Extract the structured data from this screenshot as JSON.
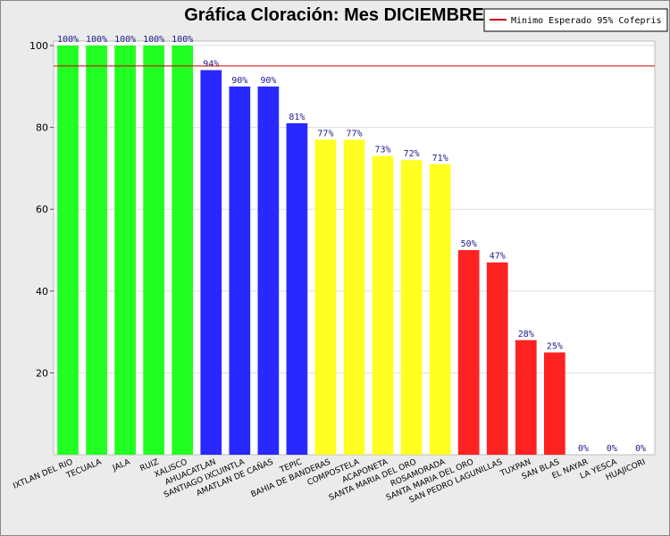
{
  "chart_data": {
    "type": "bar",
    "title": "Gráfica Cloración: Mes DICIEMBRE",
    "xlabel": "",
    "ylabel": "",
    "ylim": [
      0,
      100
    ],
    "yticks": [
      20,
      40,
      60,
      80,
      100
    ],
    "grid": true,
    "legend_position": "top-right",
    "categories": [
      "IXTLAN DEL RIO",
      "TECUALA",
      "JALA",
      "RUIZ",
      "XALISCO",
      "AHUACATLAN",
      "SANTIAGO IXCUINTLA",
      "AMATLAN DE CAÑAS",
      "TEPIC",
      "BAHIA DE BANDERAS",
      "COMPOSTELA",
      "ACAPONETA",
      "SANTA MARIA DEL ORO",
      "ROSAMORADA",
      "SANTA MARIA DEL ORO",
      "SAN PEDRO LAGUNILLAS",
      "TUXPAN",
      "SAN BLAS",
      "EL NAYAR",
      "LA YESCA",
      "HUAJICORI"
    ],
    "values": [
      100,
      100,
      100,
      100,
      100,
      94,
      90,
      90,
      81,
      77,
      77,
      73,
      72,
      71,
      50,
      47,
      28,
      25,
      0,
      0,
      0
    ],
    "data_labels": [
      "100%",
      "100%",
      "100%",
      "100%",
      "100%",
      "94%",
      "90%",
      "90%",
      "81%",
      "77%",
      "77%",
      "73%",
      "72%",
      "71%",
      "50%",
      "47%",
      "28%",
      "25%",
      "0%",
      "0%",
      "0%"
    ],
    "bar_colors": [
      "#22ff22",
      "#22ff22",
      "#22ff22",
      "#22ff22",
      "#22ff22",
      "#2929ff",
      "#2929ff",
      "#2929ff",
      "#2929ff",
      "#ffff22",
      "#ffff22",
      "#ffff22",
      "#ffff22",
      "#ffff22",
      "#ff2222",
      "#ff2222",
      "#ff2222",
      "#ff2222",
      "#ff2222",
      "#ff2222",
      "#ff2222"
    ],
    "reference_line": {
      "name": "Minimo Esperado 95% Cofepris",
      "value": 95,
      "color": "#cc0000"
    }
  }
}
